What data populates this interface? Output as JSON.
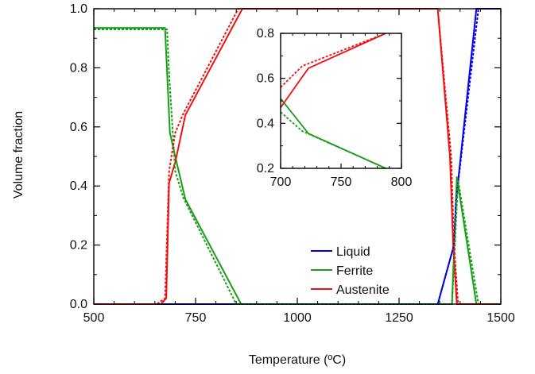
{
  "chart_data": [
    {
      "type": "line",
      "xlabel": "Temperature (ºC)",
      "ylabel": "Volume fraction",
      "xlim": [
        500,
        1500
      ],
      "ylim": [
        0,
        1
      ],
      "xticks": [
        500,
        750,
        1000,
        1250,
        1500
      ],
      "yticks": [
        0.0,
        0.2,
        0.4,
        0.6,
        0.8,
        1.0
      ],
      "xtick_labels": [
        "500",
        "750",
        "1000",
        "1250",
        "1500"
      ],
      "ytick_labels": [
        "0.0",
        "0.2",
        "0.4",
        "0.6",
        "0.8",
        "1.0"
      ],
      "legend_position": "bottom-right",
      "series": [
        {
          "name": "Liquid",
          "color": "#0000ee",
          "style": "solid",
          "x": [
            500,
            1345,
            1385,
            1390,
            1440,
            1500
          ],
          "y": [
            0,
            0,
            0.2,
            0.35,
            1.0,
            1.0
          ]
        },
        {
          "name": "Ferrite",
          "color": "#1a9e1a",
          "style": "solid",
          "x": [
            500,
            655,
            675,
            687,
            700,
            725,
            862,
            1380,
            1392,
            1440,
            1500
          ],
          "y": [
            0.935,
            0.935,
            0.935,
            0.58,
            0.5,
            0.355,
            0,
            0,
            0.43,
            0,
            0
          ]
        },
        {
          "name": "Austenite",
          "color": "#ee1111",
          "style": "solid",
          "x": [
            500,
            665,
            678,
            685,
            700,
            725,
            865,
            1345,
            1375,
            1383,
            1392,
            1500
          ],
          "y": [
            0,
            0,
            0.02,
            0.41,
            0.48,
            0.64,
            1.0,
            1.0,
            0.5,
            0.2,
            0,
            0
          ]
        },
        {
          "color": "#0000ee",
          "style": "dotted",
          "x": [
            500,
            1345,
            1385,
            1390,
            1445,
            1500
          ],
          "y": [
            0,
            0,
            0.2,
            0.35,
            1.0,
            1.0
          ]
        },
        {
          "color": "#1a9e1a",
          "style": "dotted",
          "x": [
            500,
            660,
            680,
            685,
            700,
            720,
            850,
            1380,
            1395,
            1445,
            1500
          ],
          "y": [
            0.93,
            0.93,
            0.93,
            0.78,
            0.45,
            0.36,
            0,
            0,
            0.42,
            0,
            0
          ]
        },
        {
          "color": "#ee1111",
          "style": "dotted",
          "x": [
            500,
            655,
            675,
            685,
            700,
            720,
            855,
            1345,
            1378,
            1385,
            1395,
            1500
          ],
          "y": [
            0,
            0,
            0.02,
            0.45,
            0.58,
            0.645,
            1.0,
            1.0,
            0.5,
            0.2,
            0,
            0
          ]
        }
      ]
    },
    {
      "type": "line",
      "xlim": [
        700,
        800
      ],
      "ylim": [
        0.2,
        0.8
      ],
      "xticks": [
        700,
        750,
        800
      ],
      "yticks": [
        0.2,
        0.4,
        0.6,
        0.8
      ],
      "xtick_labels": [
        "700",
        "750",
        "800"
      ],
      "ytick_labels": [
        "0.2",
        "0.4",
        "0.6",
        "0.8"
      ],
      "series": [
        {
          "color": "#1a9e1a",
          "style": "solid",
          "x": [
            700,
            723,
            787
          ],
          "y": [
            0.51,
            0.355,
            0.2
          ]
        },
        {
          "color": "#ee1111",
          "style": "solid",
          "x": [
            700,
            723,
            787
          ],
          "y": [
            0.47,
            0.645,
            0.8
          ]
        },
        {
          "color": "#1a9e1a",
          "style": "dotted",
          "x": [
            700,
            718,
            787
          ],
          "y": [
            0.45,
            0.365,
            0.2
          ]
        },
        {
          "color": "#ee1111",
          "style": "dotted",
          "x": [
            700,
            718,
            787
          ],
          "y": [
            0.56,
            0.655,
            0.8
          ]
        }
      ]
    }
  ]
}
